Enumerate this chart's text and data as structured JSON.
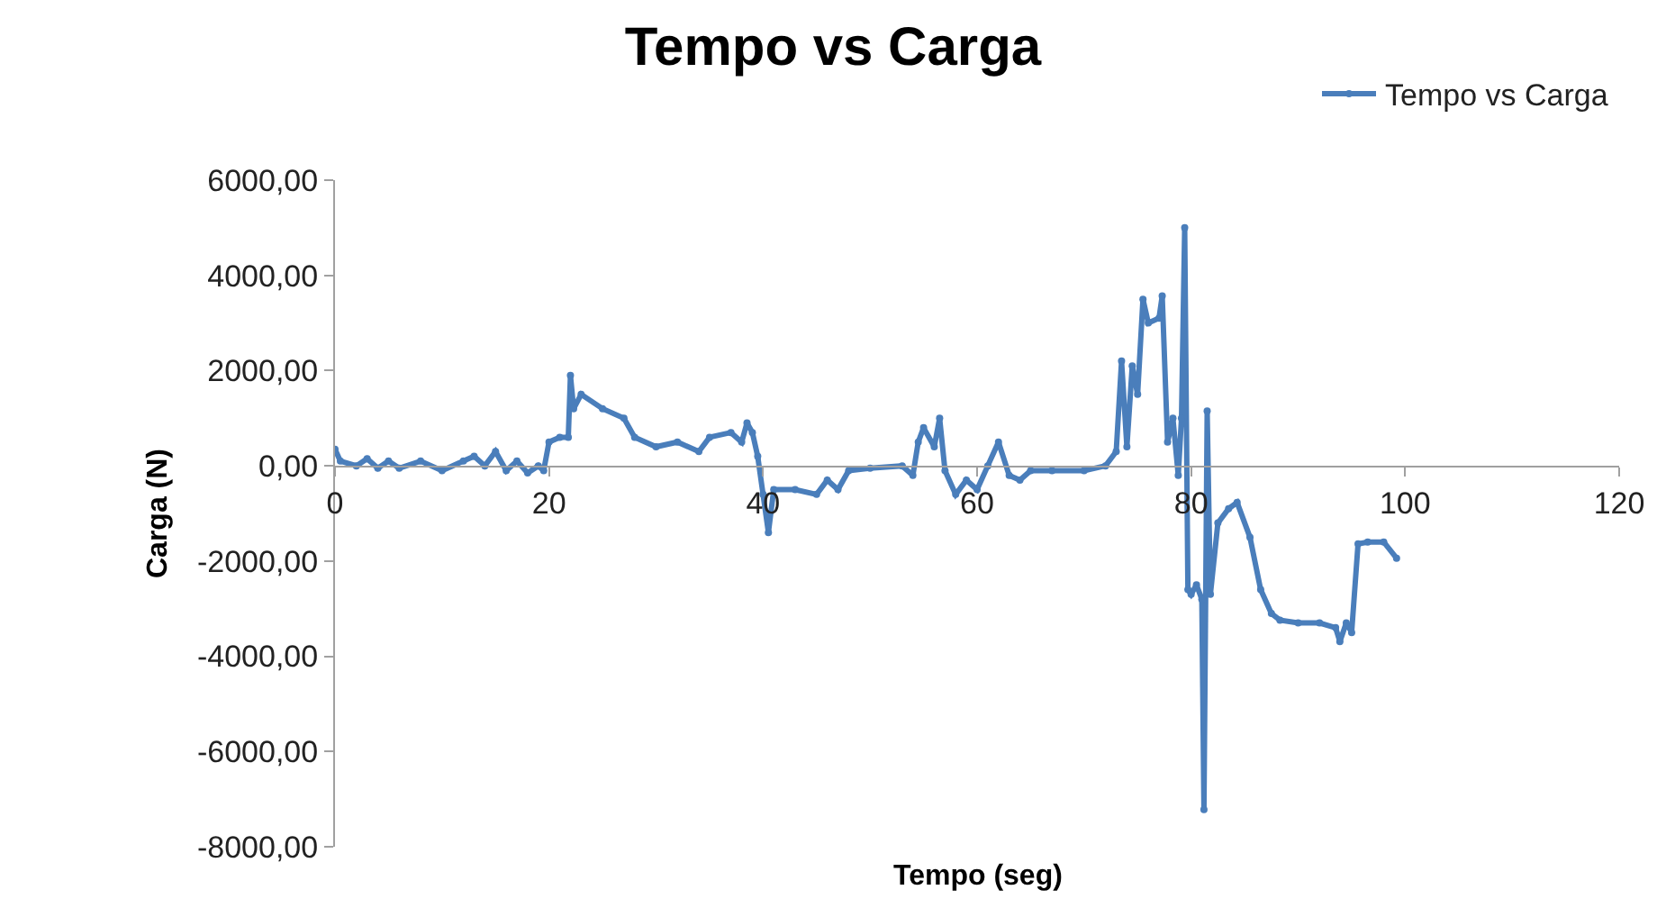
{
  "chart_data": {
    "type": "line",
    "title": "Tempo vs Carga",
    "xlabel": "Tempo (seg)",
    "ylabel": "Carga (N)",
    "x": [
      0,
      0.5,
      2,
      3,
      4,
      5,
      6,
      8,
      10,
      12,
      13,
      14,
      15,
      16,
      17,
      18,
      19,
      19.5,
      20,
      21,
      21.8,
      22,
      22.3,
      23,
      25,
      27,
      28,
      30,
      32,
      34,
      35,
      37,
      38,
      38.5,
      39,
      39.5,
      40,
      40.5,
      41,
      43,
      45,
      46,
      47,
      48,
      50,
      53,
      54,
      54.5,
      55,
      56,
      56.5,
      57,
      58,
      59,
      60,
      61,
      62,
      63,
      64,
      65,
      67,
      70,
      72,
      73,
      73.5,
      74,
      74.5,
      75,
      75.5,
      76,
      77,
      77.3,
      77.8,
      78.3,
      78.8,
      79.1,
      79.4,
      79.7,
      80,
      80.5,
      81,
      81.2,
      81.5,
      81.8,
      82.5,
      83.5,
      84.3,
      85.5,
      86.5,
      87.5,
      88.3,
      90,
      92,
      93.5,
      93.9,
      94.5,
      95,
      95.6,
      96.5,
      98,
      99.2
    ],
    "series": [
      {
        "name": "Tempo vs Carga",
        "color": "#4a7ebb",
        "values": [
          350,
          100,
          0,
          150,
          -50,
          100,
          -50,
          100,
          -100,
          100,
          200,
          0,
          300,
          -100,
          100,
          -150,
          0,
          -100,
          500,
          600,
          600,
          1900,
          1200,
          1500,
          1200,
          1000,
          600,
          400,
          500,
          300,
          600,
          700,
          500,
          900,
          700,
          200,
          -600,
          -1400,
          -500,
          -500,
          -600,
          -300,
          -500,
          -100,
          -50,
          0,
          -200,
          500,
          800,
          400,
          1000,
          -100,
          -600,
          -300,
          -500,
          0,
          500,
          -200,
          -300,
          -100,
          -100,
          -100,
          0,
          300,
          2200,
          400,
          2100,
          1500,
          3500,
          3000,
          3100,
          3570,
          500,
          1000,
          -200,
          1000,
          5000,
          -2600,
          -2700,
          -2500,
          -2800,
          -7220,
          1150,
          -2700,
          -1200,
          -900,
          -770,
          -1500,
          -2600,
          -3100,
          -3240,
          -3300,
          -3300,
          -3400,
          -3690,
          -3300,
          -3500,
          -1640,
          -1600,
          -1600,
          -1940
        ]
      }
    ],
    "xlim": [
      0,
      120
    ],
    "xticks": [
      0,
      20,
      40,
      60,
      80,
      100,
      120
    ],
    "ylim": [
      -8000,
      6000
    ],
    "yticks": [
      {
        "value": -8000,
        "label": "-8000,00"
      },
      {
        "value": -6000,
        "label": "-6000,00"
      },
      {
        "value": -4000,
        "label": "-4000,00"
      },
      {
        "value": -2000,
        "label": "-2000,00"
      },
      {
        "value": 0,
        "label": "0,00"
      },
      {
        "value": 2000,
        "label": "2000,00"
      },
      {
        "value": 4000,
        "label": "4000,00"
      },
      {
        "value": 6000,
        "label": "6000,00"
      }
    ],
    "legend": "top right",
    "marker": "circle",
    "line_style": "solid"
  }
}
